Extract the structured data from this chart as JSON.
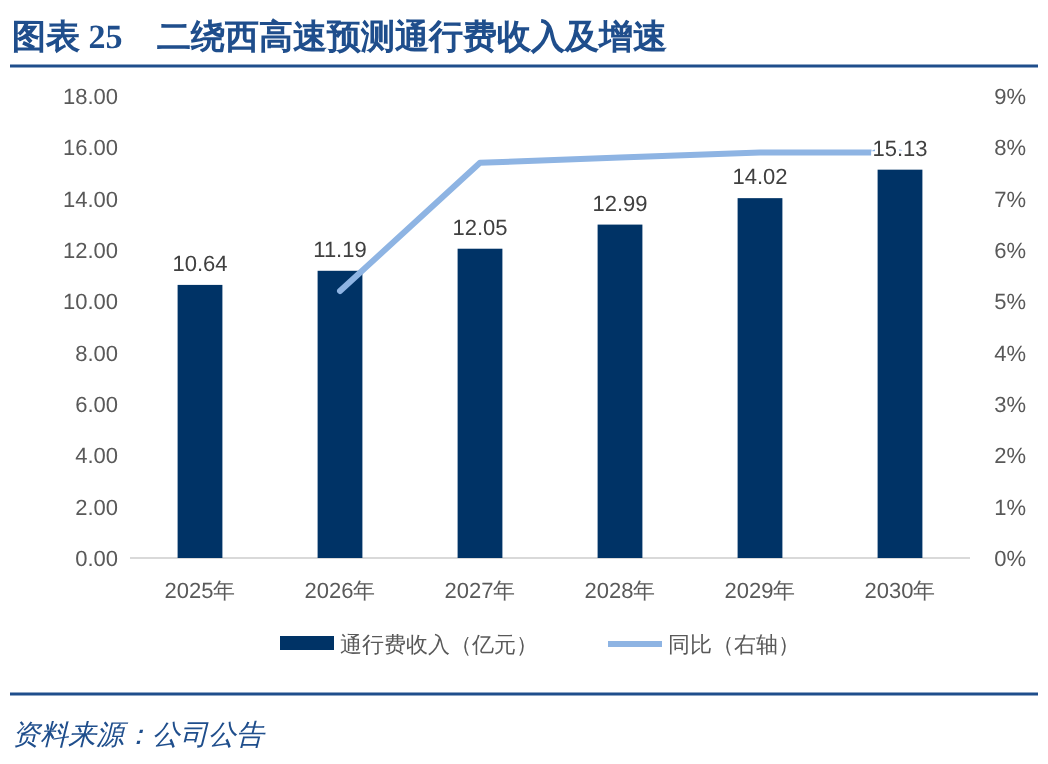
{
  "chart_data": {
    "type": "bar",
    "title": "图表 25　二绕西高速预测通行费收入及增速",
    "categories": [
      "2025年",
      "2026年",
      "2027年",
      "2028年",
      "2029年",
      "2030年"
    ],
    "series": [
      {
        "name": "通行费收入（亿元）",
        "color": "#003366",
        "values": [
          10.64,
          11.19,
          12.05,
          12.99,
          14.02,
          15.13
        ],
        "value_labels": [
          "10.64",
          "11.19",
          "12.05",
          "12.99",
          "14.02",
          "15.13"
        ]
      },
      {
        "name": "同比（右轴）",
        "type": "line",
        "axis": "y2",
        "color": "#8eb4e3",
        "values": [
          null,
          5.2,
          7.7,
          7.8,
          7.9,
          7.9
        ]
      }
    ],
    "ylim": [
      0,
      18
    ],
    "yticks": [
      {
        "value": 0,
        "label": "0.00"
      },
      {
        "value": 2,
        "label": "2.00"
      },
      {
        "value": 4,
        "label": "4.00"
      },
      {
        "value": 6,
        "label": "6.00"
      },
      {
        "value": 8,
        "label": "8.00"
      },
      {
        "value": 10,
        "label": "10.00"
      },
      {
        "value": 12,
        "label": "12.00"
      },
      {
        "value": 14,
        "label": "14.00"
      },
      {
        "value": 16,
        "label": "16.00"
      },
      {
        "value": 18,
        "label": "18.00"
      }
    ],
    "y2lim": [
      0,
      9
    ],
    "y2ticks": [
      {
        "value": 0,
        "label": "0%"
      },
      {
        "value": 1,
        "label": "1%"
      },
      {
        "value": 2,
        "label": "2%"
      },
      {
        "value": 3,
        "label": "3%"
      },
      {
        "value": 4,
        "label": "4%"
      },
      {
        "value": 5,
        "label": "5%"
      },
      {
        "value": 6,
        "label": "6%"
      },
      {
        "value": 7,
        "label": "7%"
      },
      {
        "value": 8,
        "label": "8%"
      },
      {
        "value": 9,
        "label": "9%"
      }
    ],
    "legend": "bottom",
    "annotations": [
      "资料来源：公司公告"
    ]
  }
}
